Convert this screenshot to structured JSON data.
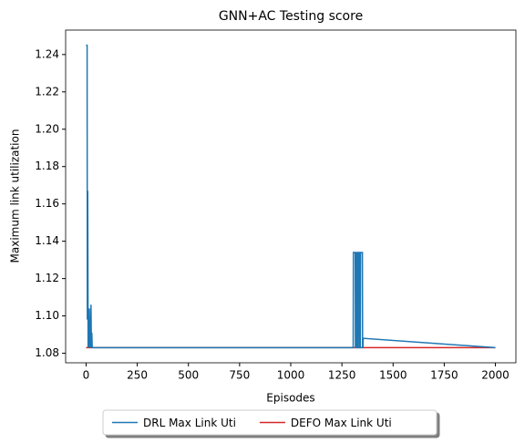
{
  "chart_data": {
    "type": "line",
    "title": "GNN+AC Testing score",
    "xlabel": "Episodes",
    "ylabel": "Maximum link utilization",
    "x": [
      0,
      5,
      6,
      8,
      10,
      12,
      14,
      16,
      18,
      20,
      22,
      24,
      26,
      28,
      30,
      1305,
      1306,
      1315,
      1316,
      1320,
      1321,
      1325,
      1326,
      1330,
      1331,
      1336,
      1337,
      1340,
      1341,
      1350,
      1351,
      1353,
      1354,
      2000
    ],
    "series": [
      {
        "name": "DEFO Max Link Uti",
        "color": "#d62728",
        "values": [
          1.083,
          1.083,
          1.083,
          1.083,
          1.083,
          1.083,
          1.083,
          1.083,
          1.083,
          1.083,
          1.083,
          1.083,
          1.083,
          1.083,
          1.083,
          1.083,
          1.083,
          1.083,
          1.083,
          1.083,
          1.083,
          1.083,
          1.083,
          1.083,
          1.083,
          1.083,
          1.083,
          1.083,
          1.083,
          1.083,
          1.083,
          1.083,
          1.083,
          1.083
        ]
      },
      {
        "name": "DRL Max Link Uti",
        "color": "#1f77b4",
        "values": [
          1.245,
          1.245,
          1.098,
          1.167,
          1.083,
          1.104,
          1.083,
          1.104,
          1.083,
          1.1,
          1.083,
          1.106,
          1.083,
          1.091,
          1.083,
          1.083,
          1.134,
          1.134,
          1.083,
          1.083,
          1.134,
          1.134,
          1.083,
          1.083,
          1.134,
          1.134,
          1.083,
          1.083,
          1.134,
          1.134,
          1.083,
          1.083,
          1.088,
          1.083
        ]
      }
    ],
    "legend_order": [
      1,
      0
    ],
    "legend": "lower center",
    "xlim": [
      -100,
      2100
    ],
    "xticks": [
      0,
      250,
      500,
      750,
      1000,
      1250,
      1500,
      1750,
      2000
    ],
    "ylim": [
      1.0749,
      1.2531
    ],
    "yticks": [
      1.08,
      {
        "value": 1.1,
        "label": "1.10"
      },
      1.12,
      1.14,
      1.16,
      1.18,
      {
        "value": 1.2,
        "label": "1.20"
      },
      1.22,
      1.24
    ]
  }
}
